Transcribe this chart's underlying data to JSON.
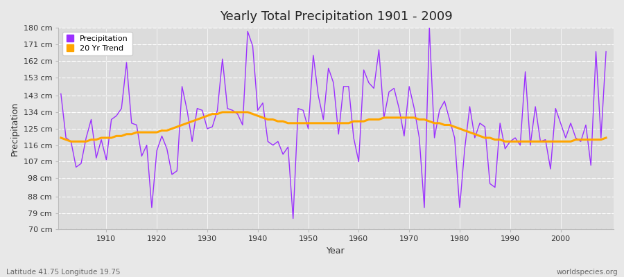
{
  "title": "Yearly Total Precipitation 1901 - 2009",
  "xlabel": "Year",
  "ylabel": "Precipitation",
  "subtitle": "Latitude 41.75 Longitude 19.75",
  "watermark": "worldspecies.org",
  "start_year": 1901,
  "end_year": 2009,
  "yticks": [
    70,
    79,
    88,
    98,
    107,
    116,
    125,
    134,
    143,
    153,
    162,
    171,
    180
  ],
  "ytick_labels": [
    "70 cm",
    "79 cm",
    "88 cm",
    "98 cm",
    "107 cm",
    "116 cm",
    "125 cm",
    "134 cm",
    "143 cm",
    "153 cm",
    "162 cm",
    "171 cm",
    "180 cm"
  ],
  "precipitation": [
    144,
    120,
    118,
    104,
    106,
    120,
    130,
    109,
    119,
    108,
    130,
    132,
    136,
    161,
    128,
    127,
    110,
    116,
    82,
    113,
    121,
    114,
    100,
    102,
    148,
    135,
    118,
    136,
    135,
    125,
    126,
    135,
    163,
    136,
    135,
    133,
    127,
    178,
    170,
    135,
    139,
    118,
    116,
    118,
    111,
    115,
    76,
    136,
    135,
    125,
    165,
    143,
    130,
    158,
    150,
    122,
    148,
    148,
    120,
    107,
    157,
    150,
    147,
    168,
    131,
    145,
    147,
    136,
    121,
    148,
    136,
    120,
    82,
    180,
    120,
    135,
    140,
    130,
    120,
    82,
    114,
    137,
    120,
    128,
    126,
    95,
    93,
    128,
    114,
    118,
    120,
    116,
    156,
    116,
    137,
    118,
    119,
    103,
    136,
    128,
    120,
    128,
    120,
    118,
    127,
    105,
    167,
    120,
    167
  ],
  "trend": [
    120,
    119,
    118,
    118,
    118,
    118,
    119,
    119,
    120,
    120,
    120,
    121,
    121,
    122,
    122,
    123,
    123,
    123,
    123,
    123,
    124,
    124,
    125,
    126,
    127,
    128,
    129,
    130,
    131,
    132,
    133,
    133,
    134,
    134,
    134,
    134,
    134,
    134,
    133,
    132,
    131,
    130,
    130,
    129,
    129,
    128,
    128,
    128,
    128,
    128,
    128,
    128,
    128,
    128,
    128,
    128,
    128,
    128,
    129,
    129,
    129,
    130,
    130,
    130,
    131,
    131,
    131,
    131,
    131,
    131,
    131,
    130,
    130,
    129,
    128,
    128,
    127,
    127,
    126,
    125,
    124,
    123,
    122,
    121,
    120,
    120,
    119,
    119,
    118,
    118,
    118,
    118,
    118,
    118,
    118,
    118,
    118,
    118,
    118,
    118,
    118,
    118,
    119,
    119,
    119,
    119,
    119,
    119,
    120
  ],
  "precip_color": "#9B30FF",
  "trend_color": "#FFA500",
  "bg_color": "#E8E8E8",
  "plot_bg_color": "#DCDCDC",
  "grid_color": "#FFFFFF",
  "dot_grid_color": "#C8C8C8",
  "text_color": "#333333",
  "spine_color": "#BBBBBB"
}
